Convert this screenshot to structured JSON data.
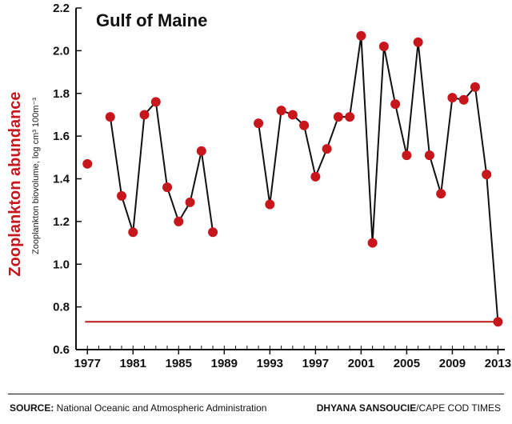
{
  "chart_data": {
    "type": "line",
    "title": "Gulf of Maine",
    "ylabel": "Zooplankton abundance",
    "ylabel_sub": "Zooplankton biovolume, log cm³ 100m⁻³",
    "xlabel": "",
    "xlim": [
      1976,
      2013.6
    ],
    "ylim": [
      0.6,
      2.2
    ],
    "x_ticks": [
      1977,
      1981,
      1985,
      1989,
      1993,
      1997,
      2001,
      2005,
      2009,
      2013
    ],
    "y_ticks": [
      "0.6",
      "0.8",
      "1.0",
      "1.2",
      "1.4",
      "1.6",
      "1.8",
      "2.0",
      "2.2"
    ],
    "grid": false,
    "colors": {
      "points": "#c8161d",
      "line": "#111111",
      "reference": "#b71c1c"
    },
    "reference_line": {
      "y": 0.73,
      "x_from": 1977,
      "x_to": 2013
    },
    "series": [
      {
        "points": [
          {
            "x": 1977,
            "y": 1.47
          },
          {
            "x": 1979,
            "y": 1.69
          },
          {
            "x": 1980,
            "y": 1.32
          },
          {
            "x": 1981,
            "y": 1.15
          },
          {
            "x": 1982,
            "y": 1.7
          },
          {
            "x": 1983,
            "y": 1.76
          },
          {
            "x": 1984,
            "y": 1.36
          },
          {
            "x": 1985,
            "y": 1.2
          },
          {
            "x": 1986,
            "y": 1.29
          },
          {
            "x": 1987,
            "y": 1.53
          },
          {
            "x": 1988,
            "y": 1.15
          },
          {
            "x": 1992,
            "y": 1.66
          },
          {
            "x": 1993,
            "y": 1.28
          },
          {
            "x": 1994,
            "y": 1.72
          },
          {
            "x": 1995,
            "y": 1.7
          },
          {
            "x": 1996,
            "y": 1.65
          },
          {
            "x": 1997,
            "y": 1.41
          },
          {
            "x": 1998,
            "y": 1.54
          },
          {
            "x": 1999,
            "y": 1.69
          },
          {
            "x": 2000,
            "y": 1.69
          },
          {
            "x": 2001,
            "y": 2.07
          },
          {
            "x": 2002,
            "y": 1.1
          },
          {
            "x": 2003,
            "y": 2.02
          },
          {
            "x": 2004,
            "y": 1.75
          },
          {
            "x": 2005,
            "y": 1.51
          },
          {
            "x": 2006,
            "y": 2.04
          },
          {
            "x": 2007,
            "y": 1.51
          },
          {
            "x": 2008,
            "y": 1.33
          },
          {
            "x": 2009,
            "y": 1.78
          },
          {
            "x": 2010,
            "y": 1.77
          },
          {
            "x": 2011,
            "y": 1.83
          },
          {
            "x": 2012,
            "y": 1.42
          },
          {
            "x": 2013,
            "y": 0.73
          }
        ],
        "segments": [
          [
            0,
            0
          ],
          [
            1,
            10
          ],
          [
            11,
            32
          ]
        ]
      }
    ]
  },
  "footer": {
    "source_label": "SOURCE:",
    "source_text": " National Oceanic and Atmospheric Administration",
    "credit_name": "DHYANA SANSOUCIE",
    "credit_org": "/CAPE COD TIMES"
  }
}
